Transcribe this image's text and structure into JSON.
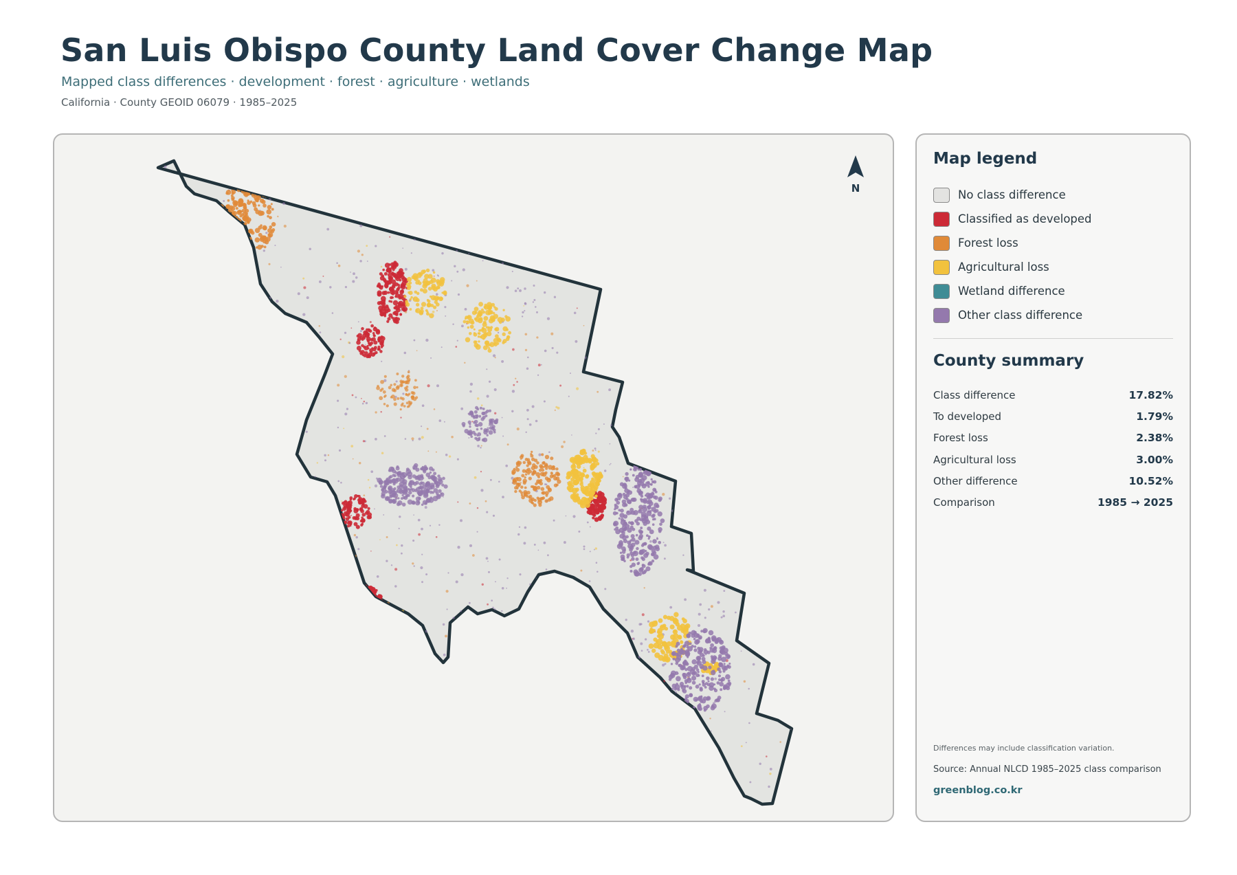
{
  "header": {
    "title": "San Luis Obispo County Land Cover Change Map",
    "subtitle": "Mapped class differences · development · forest · agriculture · wetlands",
    "meta": "California · County GEOID 06079 · 1985–2025"
  },
  "map": {
    "north_label": "N",
    "outline_color": "#22333b",
    "fill_color": "#e3e4e1"
  },
  "legend": {
    "title": "Map legend",
    "items": [
      {
        "label": "No class difference",
        "color": "#e3e3e1"
      },
      {
        "label": "Classified as developed",
        "color": "#cc2a36"
      },
      {
        "label": "Forest loss",
        "color": "#e08a38"
      },
      {
        "label": "Agricultural loss",
        "color": "#f2c23e"
      },
      {
        "label": "Wetland difference",
        "color": "#3f8c95"
      },
      {
        "label": "Other class difference",
        "color": "#9479ad"
      }
    ]
  },
  "summary": {
    "title": "County summary",
    "rows": [
      {
        "label": "Class difference",
        "value": "17.82%"
      },
      {
        "label": "To developed",
        "value": "1.79%"
      },
      {
        "label": "Forest loss",
        "value": "2.38%"
      },
      {
        "label": "Agricultural loss",
        "value": "3.00%"
      },
      {
        "label": "Other difference",
        "value": "10.52%"
      },
      {
        "label": "Comparison",
        "value": "1985 → 2025"
      }
    ]
  },
  "footer": {
    "note": "Differences may include classification variation.",
    "source": "Source: Annual NLCD 1985–2025 class comparison",
    "brand": "greenblog.co.kr"
  }
}
